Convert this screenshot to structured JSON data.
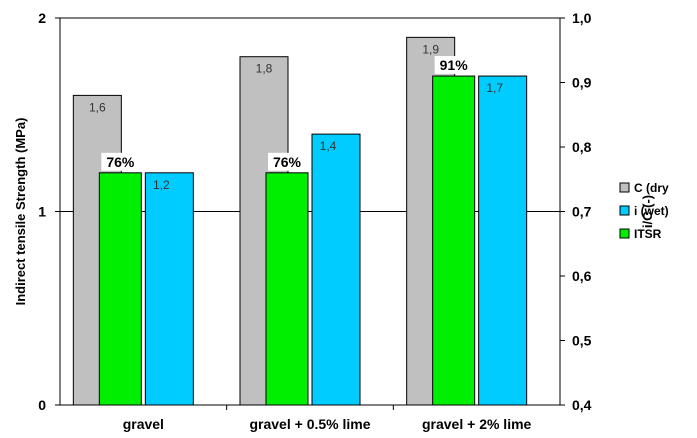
{
  "chart_data": {
    "type": "bar",
    "categories": [
      "gravel",
      "gravel + 0.5% lime",
      "gravel + 2% lime"
    ],
    "series": [
      {
        "name": "C (dry",
        "axis": "left",
        "values": [
          1.6,
          1.8,
          1.9
        ],
        "labels": [
          "1,6",
          "1,8",
          "1,9"
        ],
        "color": "#c0c0c0"
      },
      {
        "name": "ITSR",
        "axis": "right",
        "values": [
          0.76,
          0.76,
          0.91
        ],
        "labels": [
          "76%",
          "76%",
          "91%"
        ],
        "color": "#00ee00"
      },
      {
        "name": "i (wet)",
        "axis": "left",
        "values": [
          1.2,
          1.4,
          1.7
        ],
        "labels": [
          "1,2",
          "1,4",
          "1,7"
        ],
        "color": "#00ccff"
      }
    ],
    "legend_order": [
      "C (dry",
      "i (wet)",
      "ITSR"
    ],
    "ylabel": "Indirect tensile Strength (MPa)",
    "y2label": "i/C (-)",
    "ylim": [
      0,
      2
    ],
    "y2lim": [
      0.4,
      1.0
    ],
    "yticks": [
      "0",
      "1",
      "2"
    ],
    "y2ticks": [
      "0,4",
      "0,5",
      "0,6",
      "0,7",
      "0,8",
      "0,9",
      "1,0"
    ],
    "grid": "horizontal at left-axis major ticks",
    "legend": "right"
  }
}
